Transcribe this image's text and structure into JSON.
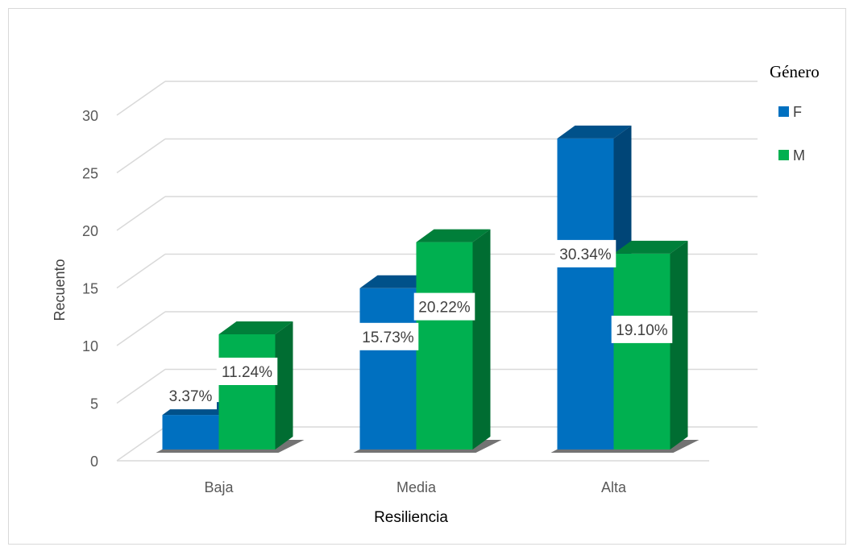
{
  "chart_data": {
    "type": "bar",
    "categories": [
      "Baja",
      "Media",
      "Alta"
    ],
    "series": [
      {
        "name": "F",
        "values": [
          3,
          14,
          27
        ],
        "labels": [
          "3.37%",
          "15.73%",
          "30.34%"
        ],
        "color": "#0070c0"
      },
      {
        "name": "M",
        "values": [
          10,
          18,
          17
        ],
        "labels": [
          "11.24%",
          "20.22%",
          "19.10%"
        ],
        "color": "#00b050"
      }
    ],
    "xlabel": "Resiliencia",
    "ylabel": "Recuento",
    "ylim": [
      0,
      30
    ],
    "yticks": [
      0,
      5,
      10,
      15,
      20,
      25,
      30
    ],
    "legend_title": "Género",
    "legend_position": "right",
    "grid": true,
    "style": "3d-clustered-column"
  }
}
